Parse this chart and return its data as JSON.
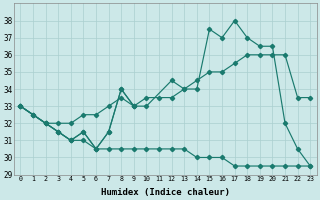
{
  "xlabel": "Humidex (Indice chaleur)",
  "line_color": "#1a7a6e",
  "bg_color": "#cce8e8",
  "grid_color": "#aacfcf",
  "ylim": [
    29,
    39
  ],
  "xlim": [
    -0.5,
    23.5
  ],
  "yticks": [
    29,
    30,
    31,
    32,
    33,
    34,
    35,
    36,
    37,
    38
  ],
  "xticks": [
    0,
    1,
    2,
    3,
    4,
    5,
    6,
    7,
    8,
    9,
    10,
    11,
    12,
    13,
    14,
    15,
    16,
    17,
    18,
    19,
    20,
    21,
    22,
    23
  ],
  "series_zigzag": {
    "x": [
      0,
      1,
      2,
      3,
      4,
      5,
      6,
      7,
      8,
      9
    ],
    "y": [
      33.0,
      32.5,
      32.0,
      31.5,
      31.0,
      31.5,
      30.5,
      31.5,
      34.0,
      33.0
    ]
  },
  "series_peak": {
    "x": [
      0,
      2,
      3,
      4,
      5,
      6,
      7,
      8,
      9,
      10,
      12,
      13,
      14,
      15,
      16,
      17,
      18,
      19,
      20,
      21,
      22,
      23
    ],
    "y": [
      33.0,
      32.0,
      31.5,
      31.0,
      31.5,
      30.5,
      31.5,
      34.0,
      33.0,
      33.0,
      34.5,
      34.0,
      34.0,
      37.5,
      37.0,
      38.0,
      37.0,
      36.5,
      36.5,
      32.0,
      30.5,
      29.5
    ]
  },
  "series_rise": {
    "x": [
      0,
      1,
      2,
      3,
      4,
      5,
      6,
      7,
      8,
      9,
      10,
      11,
      12,
      13,
      14,
      15,
      16,
      17,
      18,
      19,
      20,
      21,
      22,
      23
    ],
    "y": [
      33.0,
      32.5,
      32.0,
      32.0,
      32.0,
      32.5,
      32.5,
      33.0,
      33.5,
      33.0,
      33.5,
      33.5,
      33.5,
      34.0,
      34.5,
      35.0,
      35.0,
      35.5,
      36.0,
      36.0,
      36.0,
      36.0,
      33.5,
      33.5
    ]
  },
  "series_decline": {
    "x": [
      0,
      1,
      2,
      3,
      4,
      5,
      6,
      7,
      8,
      9,
      10,
      11,
      12,
      13,
      14,
      15,
      16,
      17,
      18,
      19,
      20,
      21,
      22,
      23
    ],
    "y": [
      33.0,
      32.5,
      32.0,
      31.5,
      31.0,
      31.0,
      30.5,
      30.5,
      30.5,
      30.5,
      30.5,
      30.5,
      30.5,
      30.5,
      30.0,
      30.0,
      30.0,
      29.5,
      29.5,
      29.5,
      29.5,
      29.5,
      29.5,
      29.5
    ]
  }
}
